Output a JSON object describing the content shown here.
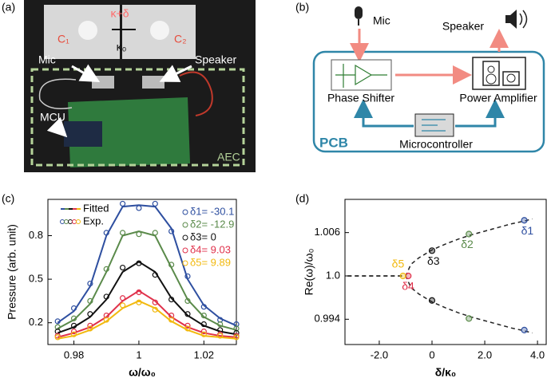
{
  "panel_a": {
    "label": "(a)",
    "kappa_delta": "κ+δ",
    "c1": "C₁",
    "c2": "C₂",
    "kappa0": "κ₀",
    "mic": "Mic",
    "speaker": "Speaker",
    "mcu": "MCU",
    "aec": "AEC"
  },
  "panel_b": {
    "label": "(b)",
    "mic": "Mic",
    "speaker": "Speaker",
    "phase_shifter": "Phase Shifter",
    "power_amplifier": "Power Amplifier",
    "pcb": "PCB",
    "microcontroller": "Microcontroller"
  },
  "chart_data": [
    {
      "type": "line",
      "panel_label": "(c)",
      "xlabel": "ω/ω₀",
      "ylabel": "Pressure (arb. unit)",
      "legend": [
        "Fitted",
        "Exp."
      ],
      "xlim": [
        0.972,
        1.03
      ],
      "xticks": [
        0.98,
        1,
        1.02
      ],
      "ylim": [
        0.05,
        1.05
      ],
      "yticks": [
        0.2,
        0.5,
        0.8
      ],
      "x": [
        0.975,
        0.98,
        0.985,
        0.99,
        0.995,
        1,
        1.005,
        1.01,
        1.015,
        1.02,
        1.025,
        1.03
      ],
      "series": [
        {
          "name": "δ1= -30.1",
          "color": "#2e4fa0",
          "values": [
            0.2,
            0.28,
            0.45,
            0.8,
            1.0,
            1.01,
            1.0,
            0.85,
            0.5,
            0.32,
            0.23,
            0.18
          ],
          "exp_values": [
            0.21,
            0.3,
            0.47,
            0.82,
            1.02,
            0.99,
            1.02,
            0.83,
            0.52,
            0.31,
            0.22,
            0.19
          ]
        },
        {
          "name": "δ2= -12.9",
          "color": "#5a8a4a",
          "values": [
            0.16,
            0.22,
            0.33,
            0.55,
            0.8,
            0.83,
            0.8,
            0.58,
            0.36,
            0.24,
            0.18,
            0.15
          ],
          "exp_values": [
            0.17,
            0.23,
            0.35,
            0.57,
            0.82,
            0.81,
            0.82,
            0.6,
            0.35,
            0.25,
            0.19,
            0.16
          ]
        },
        {
          "name": "δ3= 0",
          "color": "#111111",
          "values": [
            0.13,
            0.17,
            0.24,
            0.36,
            0.55,
            0.62,
            0.55,
            0.37,
            0.25,
            0.18,
            0.14,
            0.12
          ],
          "exp_values": [
            0.14,
            0.18,
            0.26,
            0.38,
            0.58,
            0.61,
            0.53,
            0.36,
            0.26,
            0.19,
            0.15,
            0.13
          ]
        },
        {
          "name": "δ4= 9.03",
          "color": "#e0314b",
          "values": [
            0.1,
            0.13,
            0.17,
            0.24,
            0.35,
            0.42,
            0.35,
            0.24,
            0.17,
            0.13,
            0.11,
            0.1
          ],
          "exp_values": [
            0.11,
            0.14,
            0.18,
            0.25,
            0.37,
            0.41,
            0.34,
            0.25,
            0.18,
            0.14,
            0.12,
            0.11
          ]
        },
        {
          "name": "δ5= 9.89",
          "color": "#f2b90f",
          "values": [
            0.09,
            0.11,
            0.15,
            0.21,
            0.3,
            0.35,
            0.3,
            0.21,
            0.15,
            0.11,
            0.1,
            0.09
          ],
          "exp_values": [
            0.1,
            0.12,
            0.16,
            0.22,
            0.32,
            0.34,
            0.29,
            0.22,
            0.16,
            0.12,
            0.11,
            0.1
          ]
        }
      ]
    },
    {
      "type": "scatter",
      "panel_label": "(d)",
      "xlabel": "δ/κ₀",
      "ylabel": "Re(ω)/ω₀",
      "xlim": [
        -3.3,
        4.33
      ],
      "xticks": [
        {
          "value": -2,
          "label": "-2.0"
        },
        0,
        {
          "value": 2,
          "label": "2.0"
        },
        {
          "value": 4,
          "label": "4.0"
        }
      ],
      "ylim": [
        0.9905,
        1.0106
      ],
      "yticks": [
        0.994,
        {
          "value": 1,
          "label": "1.0"
        },
        1.006
      ],
      "curve": {
        "x": [
          -3.2,
          -2,
          -1,
          -0.8,
          -0.5,
          0,
          0.5,
          1,
          1.5,
          2,
          2.5,
          3,
          3.5,
          3.8
        ],
        "upper": [
          1.0,
          1.0,
          1.0,
          1.0016,
          1.0025,
          1.0036,
          1.0044,
          1.0051,
          1.0057,
          1.0062,
          1.0067,
          1.0072,
          1.0076,
          1.0079
        ],
        "lower": [
          1.0,
          1.0,
          1.0,
          0.9984,
          0.9975,
          0.9964,
          0.9956,
          0.9949,
          0.9943,
          0.9938,
          0.9933,
          0.9928,
          0.9924,
          0.9921
        ]
      },
      "series": [
        {
          "name": "δ1",
          "color": "#2e4fa0",
          "x": [
            3.5,
            3.5
          ],
          "values": [
            1.0077,
            0.9925
          ]
        },
        {
          "name": "δ2",
          "color": "#5a8a4a",
          "x": [
            1.4,
            1.4
          ],
          "values": [
            1.0058,
            0.9941
          ]
        },
        {
          "name": "δ3",
          "color": "#111111",
          "x": [
            0,
            0
          ],
          "values": [
            1.0035,
            0.9966
          ]
        },
        {
          "name": "δ4",
          "color": "#e0314b",
          "x": [
            -0.9
          ],
          "values": [
            1.0
          ]
        },
        {
          "name": "δ5",
          "color": "#f2b90f",
          "x": [
            -1.1
          ],
          "values": [
            1.0
          ]
        }
      ]
    }
  ]
}
